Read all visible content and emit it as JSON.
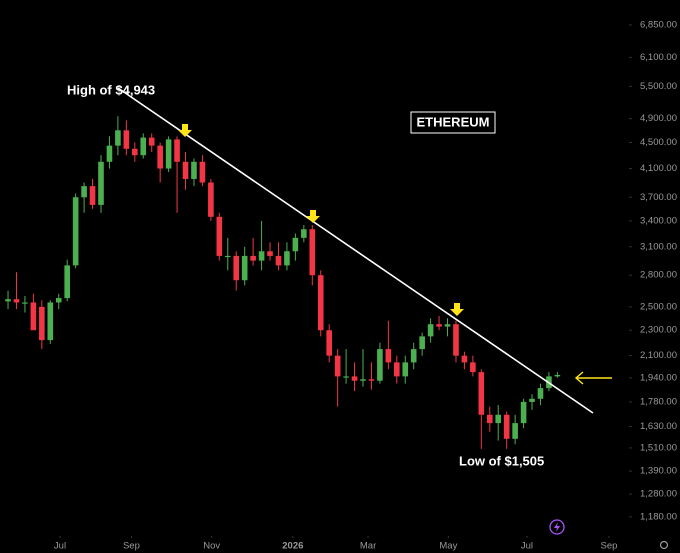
{
  "chart_data": {
    "type": "candlestick",
    "annotations": {
      "high": "High of $4,943",
      "low": "Low of $1,505",
      "asset": "ETHEREUM"
    },
    "x": [
      0,
      1,
      2,
      3,
      4,
      5,
      6,
      7,
      8,
      9,
      10,
      11,
      12,
      13,
      14,
      15,
      16,
      17,
      18,
      19,
      20,
      21,
      22,
      23,
      24,
      25,
      26,
      27,
      28,
      29,
      30,
      31,
      32,
      33,
      34,
      35,
      36,
      37,
      38,
      39,
      40,
      41,
      42,
      43,
      44,
      45,
      46,
      47,
      48,
      49,
      50,
      51,
      52,
      53,
      54,
      55,
      56,
      57,
      58,
      59,
      60,
      61,
      62,
      63,
      64,
      65
    ],
    "open": [
      2550,
      2570,
      2540,
      2540,
      2500,
      2220,
      2540,
      2580,
      2900,
      3700,
      3850,
      3600,
      4200,
      4450,
      4700,
      4400,
      4300,
      4580,
      4450,
      4100,
      4550,
      4200,
      3950,
      4200,
      3900,
      3450,
      3000,
      3000,
      2750,
      3000,
      2950,
      3050,
      3000,
      2900,
      3050,
      3200,
      3300,
      2800,
      2300,
      2100,
      1950,
      1950,
      1920,
      1930,
      1920,
      2150,
      2050,
      1950,
      2050,
      2150,
      2250,
      2350,
      2330,
      2350,
      2100,
      2050,
      1980,
      1700,
      1650,
      1700,
      1560,
      1650,
      1780,
      1800,
      1870,
      1950
    ],
    "high": [
      2650,
      2830,
      2600,
      2620,
      2560,
      2560,
      2620,
      2960,
      3750,
      3900,
      3950,
      4300,
      4600,
      4943,
      4870,
      4500,
      4650,
      4650,
      4500,
      4600,
      4600,
      4350,
      4250,
      4300,
      3950,
      3500,
      3200,
      3050,
      3100,
      3200,
      3400,
      3150,
      3150,
      3150,
      3250,
      3350,
      3350,
      2850,
      2350,
      2150,
      2150,
      2050,
      2150,
      2050,
      2200,
      2380,
      2100,
      2100,
      2200,
      2280,
      2400,
      2420,
      2400,
      2380,
      2130,
      2100,
      2000,
      1750,
      1760,
      1720,
      1700,
      1800,
      1830,
      1900,
      1980,
      1980
    ],
    "low": [
      2480,
      2480,
      2450,
      2350,
      2150,
      2190,
      2480,
      2550,
      2870,
      3500,
      3550,
      3500,
      4100,
      4300,
      4300,
      4200,
      4250,
      4350,
      3900,
      4050,
      3500,
      3800,
      3850,
      3850,
      3400,
      2950,
      2850,
      2650,
      2700,
      2900,
      2850,
      2950,
      2850,
      2850,
      2950,
      3150,
      2700,
      2250,
      2050,
      1750,
      1900,
      1850,
      1880,
      1860,
      1900,
      2000,
      1900,
      1900,
      2000,
      2100,
      2200,
      2300,
      2250,
      2050,
      2000,
      1950,
      1505,
      1600,
      1550,
      1505,
      1530,
      1620,
      1730,
      1760,
      1850,
      1940
    ],
    "close": [
      2570,
      2540,
      2540,
      2300,
      2220,
      2540,
      2580,
      2900,
      3700,
      3850,
      3600,
      4200,
      4450,
      4700,
      4400,
      4300,
      4580,
      4450,
      4100,
      4550,
      4200,
      3950,
      4200,
      3900,
      3450,
      3000,
      3000,
      2750,
      3000,
      2950,
      3050,
      3000,
      2900,
      3050,
      3200,
      3300,
      2800,
      2300,
      2100,
      1950,
      1950,
      1920,
      1930,
      1920,
      2150,
      2050,
      1950,
      2050,
      2150,
      2250,
      2350,
      2330,
      2350,
      2100,
      2050,
      1980,
      1700,
      1650,
      1700,
      1560,
      1650,
      1780,
      1800,
      1870,
      1950,
      1960
    ],
    "up_color": "#4caf50",
    "down_color": "#f23645",
    "xlim": [
      -0.95,
      73
    ],
    "xticks": [
      {
        "value": 6.15,
        "label": "Jul"
      },
      {
        "value": 14.6,
        "label": "Sep"
      },
      {
        "value": 24.1,
        "label": "Nov"
      },
      {
        "value": 33.7,
        "label": "2026"
      },
      {
        "value": 42.6,
        "label": "Mar"
      },
      {
        "value": 52.1,
        "label": "May"
      },
      {
        "value": 61.4,
        "label": "Jul"
      },
      {
        "value": 71.1,
        "label": "Sep"
      }
    ],
    "ylim": [
      1106,
      7490
    ],
    "log_scale": true,
    "yticks": [
      {
        "value": 6850,
        "label": "6,850.00"
      },
      {
        "value": 6100,
        "label": "6,100.00"
      },
      {
        "value": 5500,
        "label": "5,500.00"
      },
      {
        "value": 4900,
        "label": "4,900.00"
      },
      {
        "value": 4500,
        "label": "4,500.00"
      },
      {
        "value": 4100,
        "label": "4,100.00"
      },
      {
        "value": 3700,
        "label": "3,700.00"
      },
      {
        "value": 3400,
        "label": "3,400.00"
      },
      {
        "value": 3100,
        "label": "3,100.00"
      },
      {
        "value": 2800,
        "label": "2,800.00"
      },
      {
        "value": 2500,
        "label": "2,500.00"
      },
      {
        "value": 2300,
        "label": "2,300.00"
      },
      {
        "value": 2100,
        "label": "2,100.00"
      },
      {
        "value": 1940,
        "label": "1,940.00"
      },
      {
        "value": 1780,
        "label": "1,780.00"
      },
      {
        "value": 1630,
        "label": "1,630.00"
      },
      {
        "value": 1510,
        "label": "1,510.00"
      },
      {
        "value": 1390,
        "label": "1,390.00"
      },
      {
        "value": 1280,
        "label": "1,280.00"
      },
      {
        "value": 1180,
        "label": "1,180.00"
      }
    ]
  }
}
